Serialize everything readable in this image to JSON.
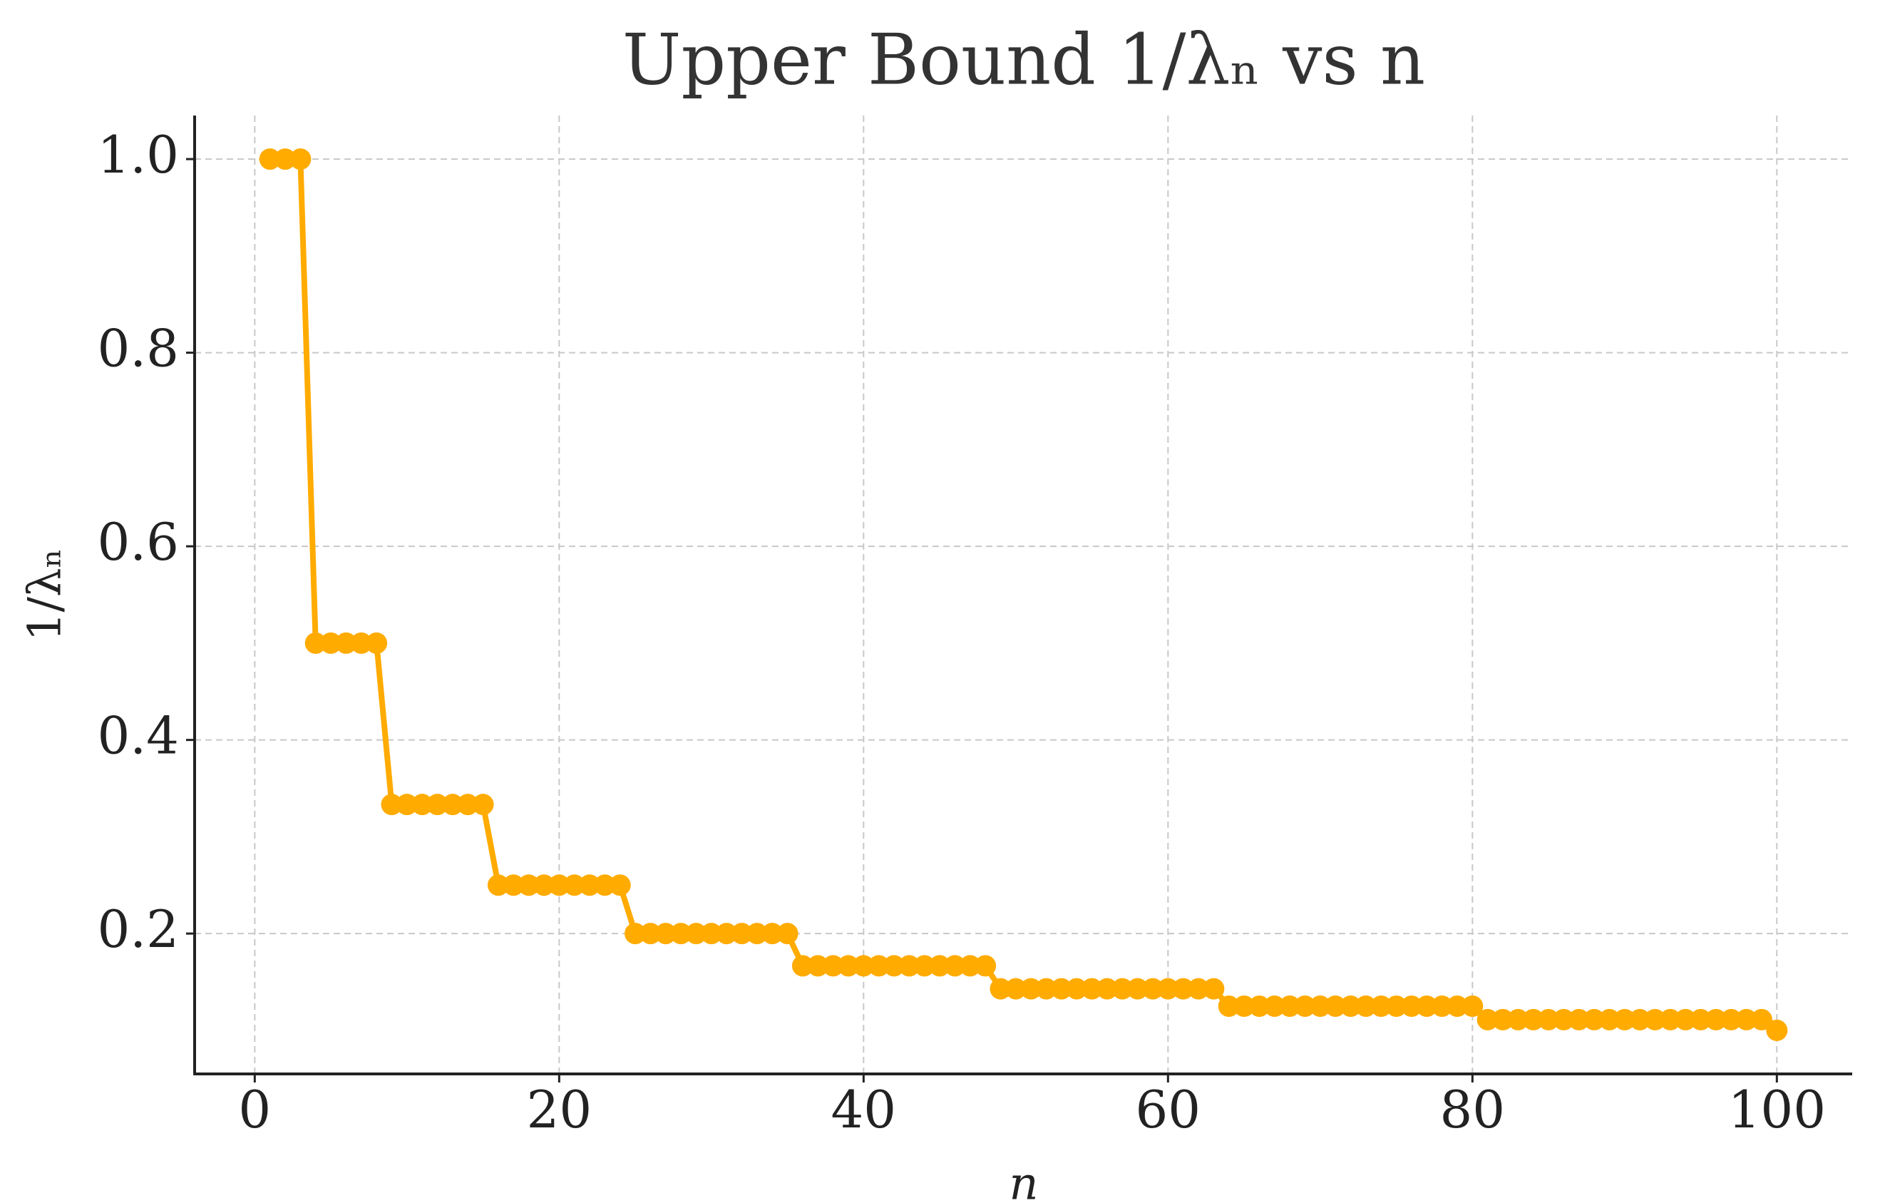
{
  "chart_data": {
    "type": "line",
    "title": "Upper Bound 1/λₙ vs n",
    "x_label": "n",
    "y_label": "1/λₙ",
    "x": [
      1,
      2,
      3,
      4,
      5,
      6,
      7,
      8,
      9,
      10,
      11,
      12,
      13,
      14,
      15,
      16,
      17,
      18,
      19,
      20,
      21,
      22,
      23,
      24,
      25,
      26,
      27,
      28,
      29,
      30,
      31,
      32,
      33,
      34,
      35,
      36,
      37,
      38,
      39,
      40,
      41,
      42,
      43,
      44,
      45,
      46,
      47,
      48,
      49,
      50,
      51,
      52,
      53,
      54,
      55,
      56,
      57,
      58,
      59,
      60,
      61,
      62,
      63,
      64,
      65,
      66,
      67,
      68,
      69,
      70,
      71,
      72,
      73,
      74,
      75,
      76,
      77,
      78,
      79,
      80,
      81,
      82,
      83,
      84,
      85,
      86,
      87,
      88,
      89,
      90,
      91,
      92,
      93,
      94,
      95,
      96,
      97,
      98,
      99,
      100
    ],
    "series": [
      {
        "color": "#ffab00",
        "values": [
          1,
          1,
          1,
          0.5,
          0.5,
          0.5,
          0.5,
          0.5,
          0.3333,
          0.3333,
          0.3333,
          0.3333,
          0.3333,
          0.3333,
          0.3333,
          0.25,
          0.25,
          0.25,
          0.25,
          0.25,
          0.25,
          0.25,
          0.25,
          0.25,
          0.2,
          0.2,
          0.2,
          0.2,
          0.2,
          0.2,
          0.2,
          0.2,
          0.2,
          0.2,
          0.2,
          0.1667,
          0.1667,
          0.1667,
          0.1667,
          0.1667,
          0.1667,
          0.1667,
          0.1667,
          0.1667,
          0.1667,
          0.1667,
          0.1667,
          0.1667,
          0.1429,
          0.1429,
          0.1429,
          0.1429,
          0.1429,
          0.1429,
          0.1429,
          0.1429,
          0.1429,
          0.1429,
          0.1429,
          0.1429,
          0.1429,
          0.1429,
          0.1429,
          0.125,
          0.125,
          0.125,
          0.125,
          0.125,
          0.125,
          0.125,
          0.125,
          0.125,
          0.125,
          0.125,
          0.125,
          0.125,
          0.125,
          0.125,
          0.125,
          0.125,
          0.1111,
          0.1111,
          0.1111,
          0.1111,
          0.1111,
          0.1111,
          0.1111,
          0.1111,
          0.1111,
          0.1111,
          0.1111,
          0.1111,
          0.1111,
          0.1111,
          0.1111,
          0.1111,
          0.1111,
          0.1111,
          0.1111,
          0.1
        ]
      }
    ],
    "xlim": [
      -3.95,
      104.95
    ],
    "ylim": [
      0.055,
      1.045
    ],
    "xticks": [
      0,
      20,
      40,
      60,
      80,
      100
    ],
    "yticks": [
      0.2,
      0.4,
      0.6,
      0.8,
      {
        "value": 1,
        "label": "1.0"
      }
    ],
    "grid": true
  }
}
